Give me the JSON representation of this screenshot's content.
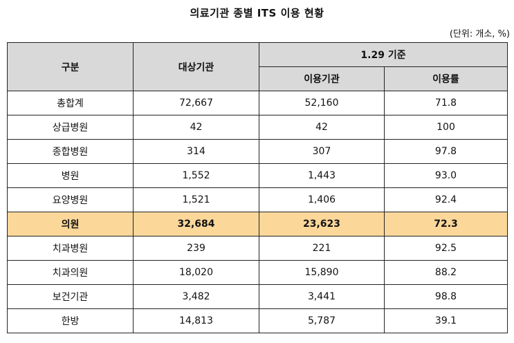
{
  "title": "의료기관 종별 ITS 이용 현황",
  "unit_note": "(단위: 개소, %)",
  "table": {
    "header": {
      "category": "구분",
      "target": "대상기관",
      "date_group": "1.29 기준",
      "using": "이용기관",
      "rate": "이용률"
    },
    "rows": [
      {
        "category": "총합계",
        "target": "72,667",
        "using": "52,160",
        "rate": "71.8"
      },
      {
        "category": "상급병원",
        "target": "42",
        "using": "42",
        "rate": "100"
      },
      {
        "category": "종합병원",
        "target": "314",
        "using": "307",
        "rate": "97.8"
      },
      {
        "category": "병원",
        "target": "1,552",
        "using": "1,443",
        "rate": "93.0"
      },
      {
        "category": "요양병원",
        "target": "1,521",
        "using": "1,406",
        "rate": "92.4"
      },
      {
        "category": "의원",
        "target": "32,684",
        "using": "23,623",
        "rate": "72.3"
      },
      {
        "category": "치과병원",
        "target": "239",
        "using": "221",
        "rate": "92.5"
      },
      {
        "category": "치과의원",
        "target": "18,020",
        "using": "15,890",
        "rate": "88.2"
      },
      {
        "category": "보건기관",
        "target": "3,482",
        "using": "3,441",
        "rate": "98.8"
      },
      {
        "category": "한방",
        "target": "14,813",
        "using": "5,787",
        "rate": "39.1"
      }
    ]
  },
  "colors": {
    "header_bg": "#d9d9d9",
    "highlight_bg": "#fbd79a",
    "border": "#222222"
  }
}
